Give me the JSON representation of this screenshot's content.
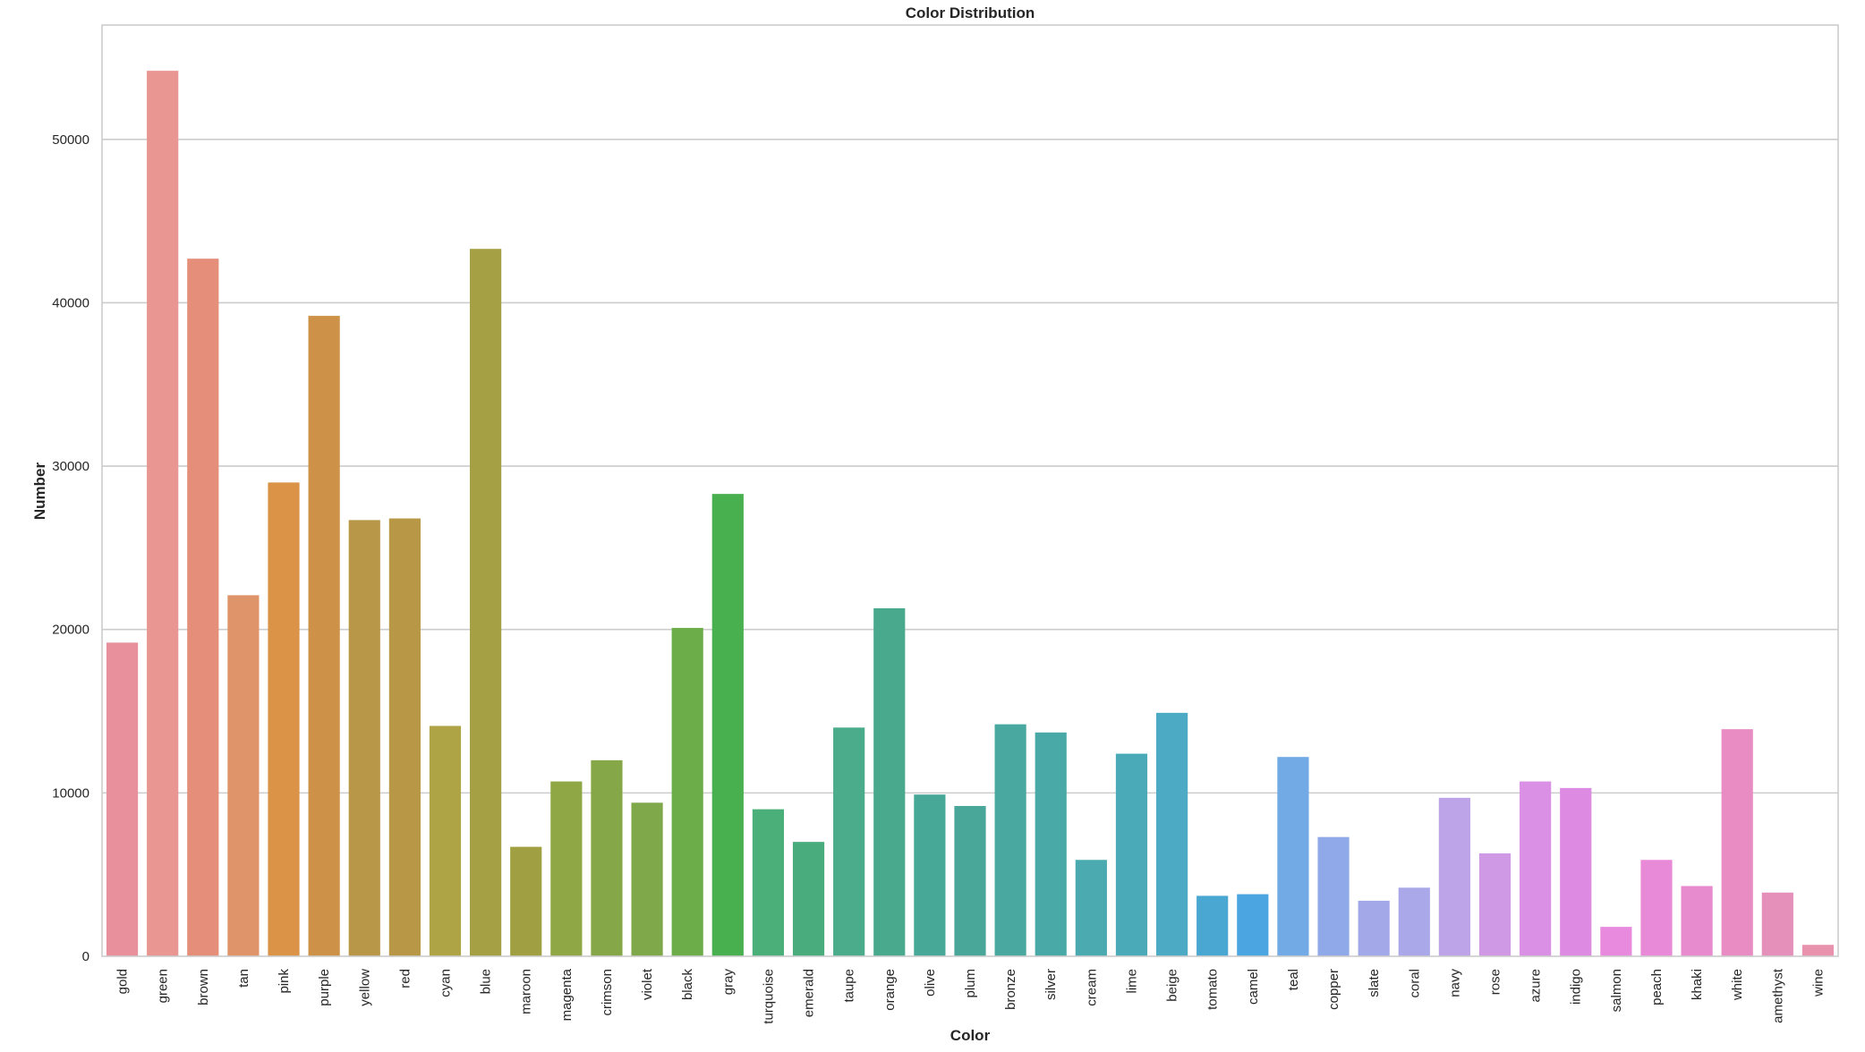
{
  "chart_data": {
    "type": "bar",
    "title": "Color Distribution",
    "xlabel": "Color",
    "ylabel": "Number",
    "ylim": [
      0,
      57000
    ],
    "yticks": [
      0,
      10000,
      20000,
      30000,
      40000,
      50000
    ],
    "ytick_labels": [
      "0",
      "10000",
      "20000",
      "30000",
      "40000",
      "50000"
    ],
    "grid": "horizontal",
    "categories": [
      "gold",
      "green",
      "brown",
      "tan",
      "pink",
      "purple",
      "yellow",
      "red",
      "cyan",
      "blue",
      "maroon",
      "magenta",
      "crimson",
      "violet",
      "black",
      "gray",
      "turquoise",
      "emerald",
      "taupe",
      "orange",
      "olive",
      "plum",
      "bronze",
      "silver",
      "cream",
      "lime",
      "beige",
      "tomato",
      "camel",
      "teal",
      "copper",
      "slate",
      "coral",
      "navy",
      "rose",
      "azure",
      "indigo",
      "salmon",
      "peach",
      "khaki",
      "white",
      "amethyst",
      "wine"
    ],
    "values": [
      19200,
      54200,
      42700,
      22100,
      29000,
      39200,
      26700,
      26800,
      14100,
      43300,
      6700,
      10700,
      12000,
      9400,
      20100,
      28300,
      9000,
      7000,
      14000,
      21300,
      9900,
      9200,
      14200,
      13700,
      5900,
      12400,
      14900,
      3700,
      3800,
      12200,
      7300,
      3400,
      4200,
      9700,
      6300,
      10700,
      10300,
      1800,
      5900,
      4300,
      13900,
      3900,
      700
    ],
    "colors": [
      "#e8919d",
      "#e99591",
      "#e58e7a",
      "#e0946a",
      "#da9347",
      "#cd9247",
      "#b99749",
      "#b89847",
      "#aea446",
      "#a5a044",
      "#a0a042",
      "#8fa744",
      "#86a747",
      "#7fa84a",
      "#6cad49",
      "#48b04f",
      "#4aaf78",
      "#48ac7c",
      "#4aac8a",
      "#48a98c",
      "#48a898",
      "#49a79a",
      "#49a8a0",
      "#49a9a6",
      "#4aaab0",
      "#4aaab8",
      "#4daac4",
      "#4aa7d2",
      "#4ba5e0",
      "#72aae6",
      "#90a9e8",
      "#a3a9e8",
      "#aaa8e8",
      "#bda3e8",
      "#cf99e5",
      "#d990e5",
      "#dd8ae3",
      "#e88add",
      "#e98ad8",
      "#e88ace",
      "#e88cc3",
      "#e490ba",
      "#e992ad"
    ]
  }
}
